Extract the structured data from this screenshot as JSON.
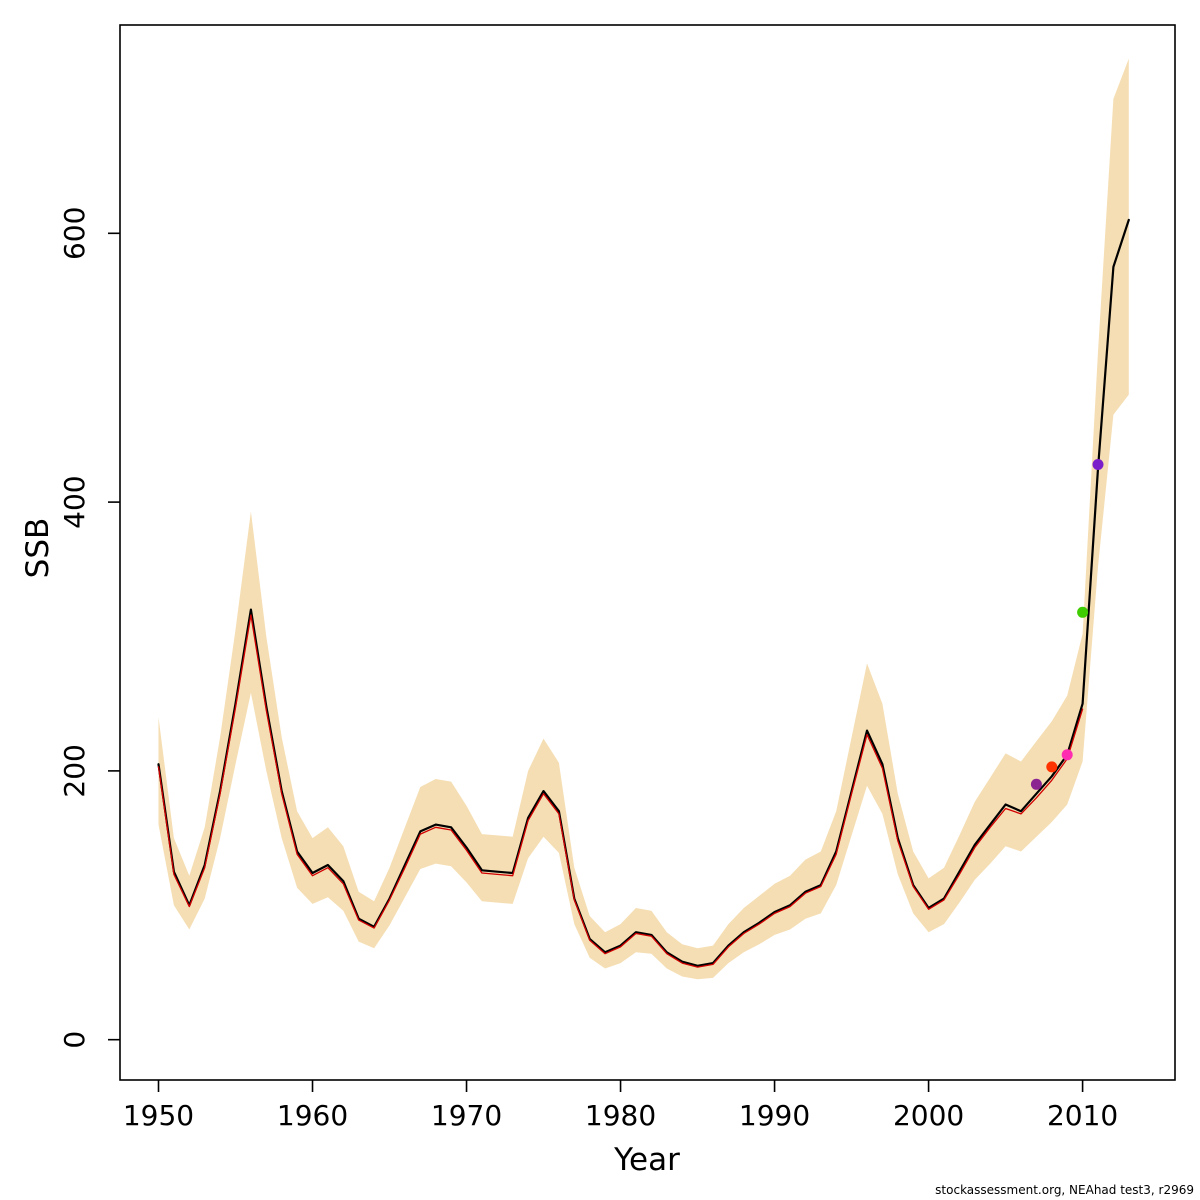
{
  "chart_data": {
    "type": "line",
    "title": "",
    "xlabel": "Year",
    "ylabel": "SSB",
    "xlim": [
      1947.5,
      2016
    ],
    "ylim": [
      -30,
      755
    ],
    "xticks": [
      1950,
      1960,
      1970,
      1980,
      1990,
      2000,
      2010
    ],
    "yticks": [
      0,
      200,
      400,
      600
    ],
    "grid": false,
    "legend": "none",
    "x": [
      1950,
      1951,
      1952,
      1953,
      1954,
      1955,
      1956,
      1957,
      1958,
      1959,
      1960,
      1961,
      1962,
      1963,
      1964,
      1965,
      1966,
      1967,
      1968,
      1969,
      1970,
      1971,
      1972,
      1973,
      1974,
      1975,
      1976,
      1977,
      1978,
      1979,
      1980,
      1981,
      1982,
      1983,
      1984,
      1985,
      1986,
      1987,
      1988,
      1989,
      1990,
      1991,
      1992,
      1993,
      1994,
      1995,
      1996,
      1997,
      1998,
      1999,
      2000,
      2001,
      2002,
      2003,
      2004,
      2005,
      2006,
      2007,
      2008,
      2009,
      2010,
      2011,
      2012,
      2013
    ],
    "band": {
      "name": "confidence-interval",
      "color": "#F5DEB3",
      "lower": [
        160,
        100,
        82,
        105,
        150,
        205,
        258,
        200,
        150,
        113,
        101,
        106,
        96,
        73,
        68,
        85,
        106,
        127,
        131,
        129,
        117,
        103,
        102,
        101,
        135,
        151,
        139,
        86,
        61,
        53,
        57,
        65,
        64,
        53,
        47,
        45,
        46,
        57,
        65,
        71,
        78,
        82,
        90,
        94,
        115,
        152,
        189,
        168,
        123,
        94,
        80,
        86,
        102,
        119,
        131,
        144,
        140,
        151,
        162,
        175,
        207,
        352,
        465,
        480
      ],
      "upper": [
        240,
        150,
        122,
        158,
        225,
        305,
        393,
        300,
        225,
        170,
        150,
        158,
        144,
        110,
        103,
        128,
        158,
        188,
        194,
        192,
        174,
        153,
        152,
        151,
        200,
        224,
        206,
        128,
        92,
        80,
        86,
        98,
        96,
        80,
        71,
        68,
        70,
        86,
        98,
        107,
        116,
        122,
        134,
        140,
        170,
        225,
        280,
        250,
        183,
        140,
        120,
        128,
        152,
        177,
        195,
        213,
        207,
        222,
        237,
        256,
        302,
        512,
        700,
        730
      ]
    },
    "series": [
      {
        "name": "ssb-estimate",
        "color": "#000000",
        "width": 2.2,
        "values": [
          205,
          125,
          100,
          130,
          185,
          250,
          320,
          248,
          185,
          140,
          124,
          130,
          118,
          90,
          84,
          105,
          130,
          155,
          160,
          158,
          143,
          126,
          125,
          124,
          165,
          185,
          170,
          105,
          75,
          65,
          70,
          80,
          78,
          65,
          58,
          55,
          57,
          70,
          80,
          87,
          95,
          100,
          110,
          115,
          140,
          185,
          230,
          205,
          150,
          115,
          98,
          105,
          125,
          145,
          160,
          175,
          170,
          183,
          196,
          212,
          250,
          425,
          575,
          610
        ]
      },
      {
        "name": "comparison-run",
        "color": "#D10000",
        "width": 1.3,
        "values": [
          203,
          123,
          99,
          128,
          183,
          247,
          316,
          245,
          183,
          138,
          122,
          128,
          116,
          89,
          83,
          104,
          128,
          153,
          158,
          156,
          141,
          124,
          123,
          122,
          163,
          183,
          168,
          104,
          74,
          64,
          69,
          79,
          77,
          64,
          57,
          54,
          56,
          69,
          79,
          86,
          94,
          99,
          109,
          114,
          138,
          183,
          227,
          202,
          148,
          114,
          97,
          104,
          123,
          143,
          158,
          172,
          168,
          180,
          193,
          209,
          246
        ]
      }
    ],
    "points": [
      {
        "x": 2007,
        "y": 190,
        "color": "#8B2490",
        "name": "retro-point-2007"
      },
      {
        "x": 2008,
        "y": 203,
        "color": "#FF3300",
        "name": "retro-point-2008"
      },
      {
        "x": 2009,
        "y": 212,
        "color": "#FF2BB0",
        "name": "retro-point-2009"
      },
      {
        "x": 2010,
        "y": 318,
        "color": "#3FCC00",
        "name": "retro-point-2010"
      },
      {
        "x": 2011,
        "y": 428,
        "color": "#7A1FC9",
        "name": "retro-point-2011"
      }
    ]
  },
  "footer": {
    "credit": "stockassessment.org, NEAhad test3, r2969"
  }
}
